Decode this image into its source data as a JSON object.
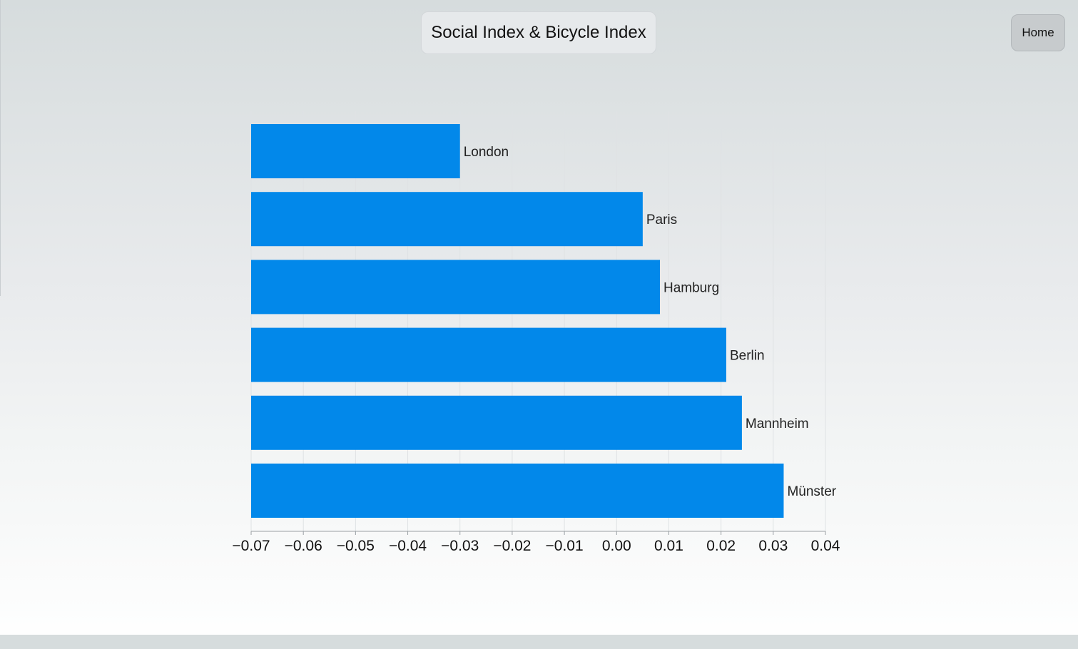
{
  "page": {
    "title": "Social Index & Bicycle Index",
    "home_label": "Home"
  },
  "colors": {
    "bar": "#0288ea",
    "grid": "#dfe2e4",
    "axis": "#9aa0a4",
    "label": "#222222"
  },
  "chart_data": {
    "type": "bar",
    "orientation": "horizontal",
    "categories": [
      "London",
      "Paris",
      "Hamburg",
      "Berlin",
      "Mannheim",
      "Münster"
    ],
    "values": [
      -0.03,
      0.005,
      0.0083,
      0.021,
      0.024,
      0.032
    ],
    "xlim": [
      -0.07,
      0.04
    ],
    "xticks": [
      "−0.07",
      "−0.06",
      "−0.05",
      "−0.04",
      "−0.03",
      "−0.02",
      "−0.01",
      "0.00",
      "0.01",
      "0.02",
      "0.03",
      "0.04"
    ],
    "xtick_values": [
      -0.07,
      -0.06,
      -0.05,
      -0.04,
      -0.03,
      -0.02,
      -0.01,
      0.0,
      0.01,
      0.02,
      0.03,
      0.04
    ],
    "grid": true,
    "title": "Social Index & Bicycle Index",
    "xlabel": "",
    "ylabel": ""
  }
}
